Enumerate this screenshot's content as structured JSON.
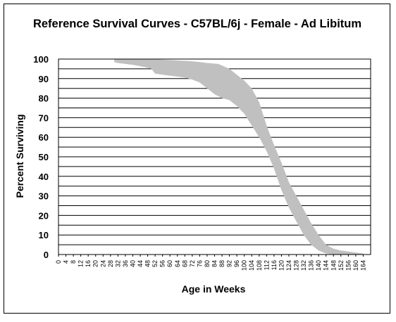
{
  "chart_data": {
    "type": "area",
    "title": "Reference Survival Curves - C57BL/6j - Female - Ad Libitum",
    "xlabel": "Age in Weeks",
    "ylabel": "Percent Surviving",
    "xlim": [
      0,
      168
    ],
    "ylim": [
      0,
      100
    ],
    "x_ticks": [
      "0",
      "4",
      "8",
      "12",
      "16",
      "20",
      "24",
      "28",
      "32",
      "36",
      "40",
      "44",
      "48",
      "52",
      "56",
      "60",
      "64",
      "68",
      "72",
      "76",
      "80",
      "84",
      "88",
      "92",
      "96",
      "100",
      "104",
      "108",
      "112",
      "116",
      "120",
      "124",
      "128",
      "132",
      "136",
      "140",
      "144",
      "148",
      "152",
      "156",
      "160",
      "164"
    ],
    "y_ticks": [
      "0",
      "10",
      "20",
      "30",
      "40",
      "50",
      "60",
      "70",
      "80",
      "90",
      "100"
    ],
    "grid": "horizontal",
    "legend": "none",
    "fill_color": "#c0c0c0",
    "band": {
      "upper": [
        [
          30,
          100
        ],
        [
          40,
          100
        ],
        [
          50,
          100
        ],
        [
          60,
          99.5
        ],
        [
          70,
          99
        ],
        [
          76,
          98.5
        ],
        [
          80,
          98
        ],
        [
          86,
          97.5
        ],
        [
          92,
          95
        ],
        [
          96,
          92
        ],
        [
          100,
          89
        ],
        [
          104,
          85
        ],
        [
          108,
          78
        ],
        [
          112,
          66
        ],
        [
          116,
          56
        ],
        [
          120,
          47
        ],
        [
          124,
          37
        ],
        [
          128,
          30
        ],
        [
          132,
          23
        ],
        [
          136,
          16
        ],
        [
          140,
          10
        ],
        [
          144,
          5
        ],
        [
          148,
          3
        ],
        [
          152,
          2
        ],
        [
          156,
          1.5
        ],
        [
          160,
          1
        ],
        [
          164,
          0.5
        ]
      ],
      "lower": [
        [
          164,
          0
        ],
        [
          148,
          0
        ],
        [
          144,
          0.5
        ],
        [
          140,
          2
        ],
        [
          136,
          5
        ],
        [
          132,
          10
        ],
        [
          128,
          17
        ],
        [
          124,
          24
        ],
        [
          120,
          33
        ],
        [
          116,
          44
        ],
        [
          112,
          53
        ],
        [
          108,
          60
        ],
        [
          104,
          66
        ],
        [
          100,
          72
        ],
        [
          96,
          76
        ],
        [
          92,
          79
        ],
        [
          88,
          80
        ],
        [
          84,
          82
        ],
        [
          80,
          85
        ],
        [
          76,
          88
        ],
        [
          72,
          89.5
        ],
        [
          68,
          90.5
        ],
        [
          64,
          91
        ],
        [
          60,
          91.5
        ],
        [
          56,
          92
        ],
        [
          52,
          92.5
        ],
        [
          50,
          95
        ],
        [
          46,
          96
        ],
        [
          40,
          97
        ],
        [
          36,
          97.5
        ],
        [
          32,
          98
        ],
        [
          30,
          98.5
        ]
      ]
    }
  }
}
